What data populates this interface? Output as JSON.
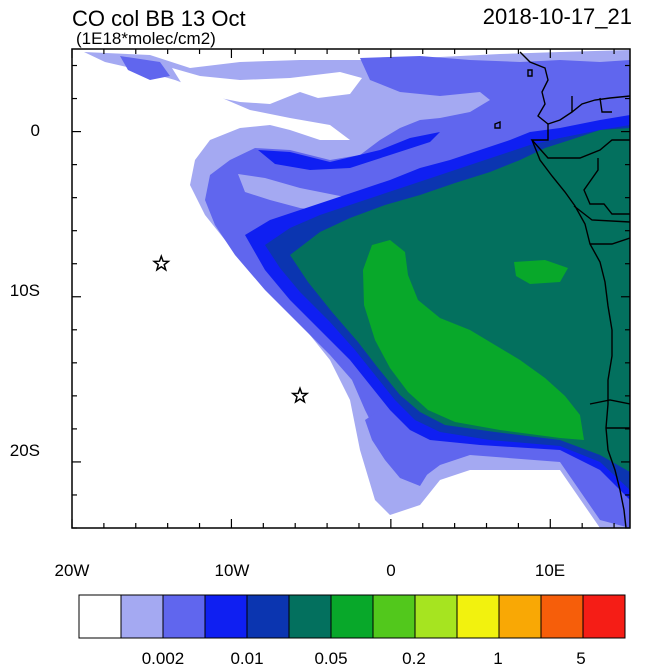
{
  "title": "CO col BB 13 Oct",
  "units": "(1E18*molec/cm2)",
  "timestamp": "2018-10-17_21",
  "map": {
    "lon_range": [
      -20,
      15
    ],
    "lat_range": [
      -24,
      5
    ],
    "x_tick_labels": [
      "20W",
      "10W",
      "0",
      "10E"
    ],
    "y_tick_labels": [
      "0",
      "10S",
      "20S"
    ],
    "markers": [
      {
        "name": "star",
        "lon": -14.4,
        "lat": -8.0
      },
      {
        "name": "star",
        "lon": -5.7,
        "lat": -16.0
      }
    ]
  },
  "colorbar": {
    "colors": [
      "#ffffff",
      "#a4a9f2",
      "#6066ee",
      "#0f1ff2",
      "#0b35b0",
      "#03705e",
      "#08a82a",
      "#52c81c",
      "#a6e420",
      "#f2f20e",
      "#f9a805",
      "#f65e0a",
      "#f51d16"
    ],
    "labels": [
      "0.002",
      "0.01",
      "0.05",
      "0.2",
      "1",
      "5"
    ]
  }
}
